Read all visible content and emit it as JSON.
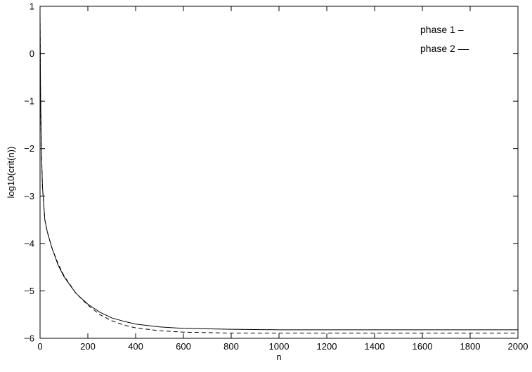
{
  "chart_data": {
    "type": "line",
    "title": "",
    "xlabel": "n",
    "ylabel": "log10(crit(n))",
    "xlim": [
      0,
      2000
    ],
    "ylim": [
      -6,
      1
    ],
    "xticks": [
      0,
      200,
      400,
      600,
      800,
      1000,
      1200,
      1400,
      1600,
      1800,
      2000
    ],
    "yticks": [
      -6,
      -5,
      -4,
      -3,
      -2,
      -1,
      0,
      1
    ],
    "xtick_labels": [
      "0",
      "200",
      "400",
      "600",
      "800",
      "1000",
      "1200",
      "1400",
      "1600",
      "1800",
      "2000"
    ],
    "ytick_labels": [
      "−6",
      "−5",
      "−4",
      "−3",
      "−2",
      "−1",
      "0",
      "1"
    ],
    "grid": false,
    "legend_position": "top-right",
    "series": [
      {
        "name": "phase 1 –",
        "style": "solid",
        "color": "#000000",
        "x": [
          0,
          2,
          5,
          10,
          20,
          30,
          50,
          75,
          100,
          150,
          200,
          250,
          300,
          350,
          400,
          500,
          600,
          700,
          800,
          1000,
          1200,
          1400,
          1600,
          1800,
          2000
        ],
        "y": [
          0.8,
          -0.8,
          -1.9,
          -2.8,
          -3.5,
          -3.75,
          -4.1,
          -4.45,
          -4.7,
          -5.05,
          -5.28,
          -5.45,
          -5.57,
          -5.64,
          -5.7,
          -5.76,
          -5.79,
          -5.8,
          -5.81,
          -5.82,
          -5.82,
          -5.82,
          -5.82,
          -5.82,
          -5.82
        ]
      },
      {
        "name": "phase 2 ––",
        "style": "dashed",
        "color": "#000000",
        "x": [
          0,
          2,
          5,
          10,
          20,
          30,
          50,
          75,
          100,
          150,
          200,
          250,
          300,
          350,
          400,
          500,
          600,
          700,
          800,
          1000,
          1200,
          1400,
          1600,
          1800,
          2000
        ],
        "y": [
          0.8,
          -0.8,
          -1.9,
          -2.8,
          -3.5,
          -3.75,
          -4.1,
          -4.42,
          -4.68,
          -5.05,
          -5.3,
          -5.5,
          -5.63,
          -5.72,
          -5.78,
          -5.84,
          -5.87,
          -5.88,
          -5.89,
          -5.89,
          -5.89,
          -5.89,
          -5.89,
          -5.89,
          -5.89
        ]
      }
    ]
  }
}
